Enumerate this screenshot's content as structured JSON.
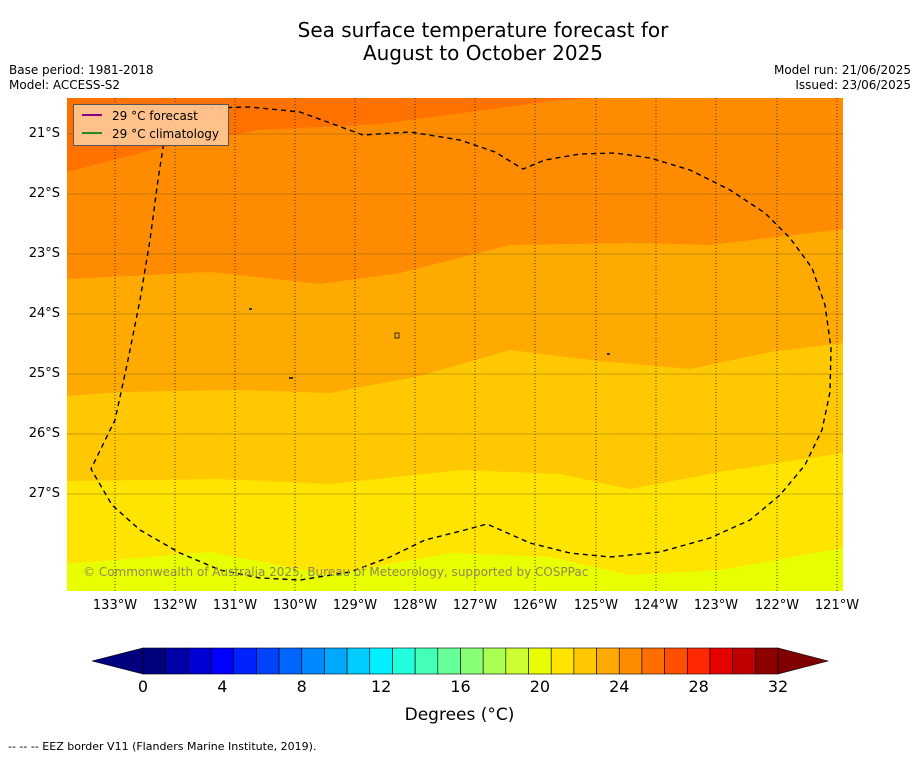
{
  "title_line1": "Sea surface temperature forecast for",
  "title_line2": "August to October 2025",
  "meta": {
    "base_period": "Base period: 1981-2018",
    "model": "Model: ACCESS-S2",
    "model_run": "Model run: 21/06/2025",
    "issued": "Issued: 23/06/2025"
  },
  "legend": {
    "forecast_label": "29 °C  forecast",
    "forecast_color": "#8b008b",
    "climatology_label": "29 °C  climatology",
    "climatology_color": "#228b22"
  },
  "copyright": "© Commonwealth of Australia 2025, Bureau of Meteorology, supported by COSPPac",
  "lat_labels": [
    "21°S",
    "22°S",
    "23°S",
    "24°S",
    "25°S",
    "26°S",
    "27°S"
  ],
  "lon_labels": [
    "133°W",
    "132°W",
    "131°W",
    "130°W",
    "129°W",
    "128°W",
    "127°W",
    "126°W",
    "125°W",
    "124°W",
    "123°W",
    "122°W",
    "121°W"
  ],
  "colorbar": {
    "ticks": [
      "0",
      "4",
      "8",
      "12",
      "16",
      "20",
      "24",
      "28",
      "32"
    ],
    "title": "Degrees (°C)",
    "colors": [
      "#00007f",
      "#0000a8",
      "#0000d4",
      "#0000ff",
      "#0022ff",
      "#0044ff",
      "#0066ff",
      "#0088ff",
      "#00a8ff",
      "#00ccff",
      "#00f0ff",
      "#22ffdd",
      "#44ffb8",
      "#66ff99",
      "#88ff77",
      "#aaff55",
      "#ccff33",
      "#e8ff00",
      "#ffe400",
      "#ffc800",
      "#ffaa00",
      "#ff8c00",
      "#ff6e00",
      "#ff5000",
      "#ff2800",
      "#e60000",
      "#bf0000",
      "#8c0000"
    ]
  },
  "field_colors": {
    "c20_22": "#e8ff00",
    "c22_23": "#ffe400",
    "c23_24": "#ffc800",
    "c24_25": "#ffaa00",
    "c25_26": "#ff8c00",
    "c26_27": "#ff7200"
  },
  "footnote": "--  --  -- EEZ border V11 (Flanders Marine Institute, 2019)."
}
